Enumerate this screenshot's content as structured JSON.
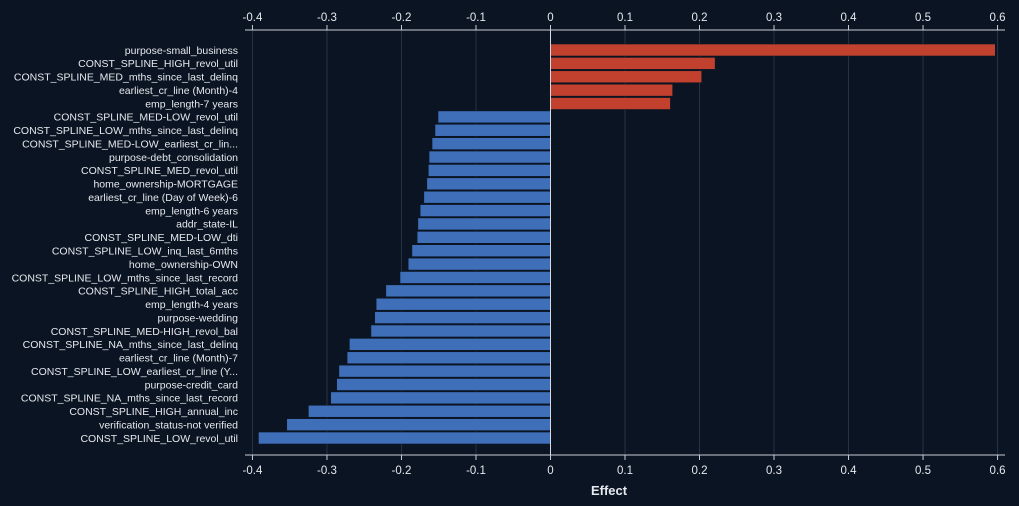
{
  "chart_data": {
    "type": "bar",
    "orientation": "horizontal",
    "xlabel": "Effect",
    "xlim": [
      -0.41,
      0.61
    ],
    "xticks": [
      -0.4,
      -0.3,
      -0.2,
      -0.1,
      0,
      0.1,
      0.2,
      0.3,
      0.4,
      0.5,
      0.6
    ],
    "xtick_labels": [
      "-0.4",
      "-0.3",
      "-0.2",
      "-0.1",
      "0",
      "0.1",
      "0.2",
      "0.3",
      "0.4",
      "0.5",
      "0.6"
    ],
    "grid": true,
    "colors": {
      "positive": "#c2412e",
      "negative": "#3f6fb8",
      "background": "#0b1422",
      "grid": "#26344a",
      "axis": "#c9ced6",
      "text": "#e6e9ee"
    },
    "categories": [
      "purpose-small_business",
      "CONST_SPLINE_HIGH_revol_util",
      "CONST_SPLINE_MED_mths_since_last_delinq",
      "earliest_cr_line (Month)-4",
      "emp_length-7 years",
      "CONST_SPLINE_MED-LOW_revol_util",
      "CONST_SPLINE_LOW_mths_since_last_delinq",
      "CONST_SPLINE_MED-LOW_earliest_cr_lin...",
      "purpose-debt_consolidation",
      "CONST_SPLINE_MED_revol_util",
      "home_ownership-MORTGAGE",
      "earliest_cr_line (Day of Week)-6",
      "emp_length-6 years",
      "addr_state-IL",
      "CONST_SPLINE_MED-LOW_dti",
      "CONST_SPLINE_LOW_inq_last_6mths",
      "home_ownership-OWN",
      "CONST_SPLINE_LOW_mths_since_last_record",
      "CONST_SPLINE_HIGH_total_acc",
      "emp_length-4 years",
      "purpose-wedding",
      "CONST_SPLINE_MED-HIGH_revol_bal",
      "CONST_SPLINE_NA_mths_since_last_delinq",
      "earliest_cr_line (Month)-7",
      "CONST_SPLINE_LOW_earliest_cr_line (Y...",
      "purpose-credit_card",
      "CONST_SPLINE_NA_mths_since_last_record",
      "CONST_SPLINE_HIGH_annual_inc",
      "verification_status-not verified",
      "CONST_SPLINE_LOW_revol_util"
    ],
    "values": [
      0.597,
      0.221,
      0.203,
      0.164,
      0.161,
      -0.151,
      -0.155,
      -0.159,
      -0.163,
      -0.164,
      -0.166,
      -0.17,
      -0.175,
      -0.178,
      -0.179,
      -0.186,
      -0.191,
      -0.202,
      -0.221,
      -0.234,
      -0.236,
      -0.241,
      -0.27,
      -0.273,
      -0.284,
      -0.287,
      -0.295,
      -0.325,
      -0.354,
      -0.392
    ]
  }
}
